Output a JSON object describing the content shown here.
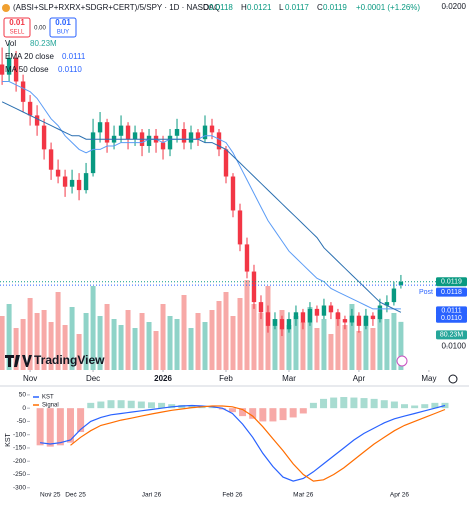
{
  "header": {
    "title": "(ABSI+SLP+RXRX+SDGR+CERT)/5/SPY · 1D · NASDAQ",
    "ohlc": [
      {
        "key": "O",
        "value": "0.0118"
      },
      {
        "key": "H",
        "value": "0.0121"
      },
      {
        "key": "L",
        "value": "0.0117"
      },
      {
        "key": "C",
        "value": "0.0119"
      }
    ],
    "change": "+0.0001 (+1.26%)"
  },
  "trade": {
    "sell_price": "0.01",
    "sell": "SELL",
    "spread": "0.00",
    "buy_price": "0.01",
    "buy": "BUY"
  },
  "chart_data": [
    {
      "type": "candlestick",
      "up_color": "#089981",
      "down_color": "#f23645",
      "watermark": "TradingView",
      "xlim": [
        -0.3,
        63.3
      ],
      "xticks": [
        {
          "value": 4,
          "label": "Nov"
        },
        {
          "value": 13,
          "label": "Dec"
        },
        {
          "value": 23,
          "label": "2026"
        },
        {
          "value": 32,
          "label": "Feb"
        },
        {
          "value": 41,
          "label": "Mar"
        },
        {
          "value": 51,
          "label": "Apr"
        },
        {
          "value": 61,
          "label": "May"
        }
      ],
      "ylim": [
        0.0093,
        0.0202
      ],
      "yticks": [
        {
          "value": 0.02,
          "label": "0.0200"
        },
        {
          "value": 0.01,
          "label": "0.0100"
        }
      ],
      "candles": [
        [
          0.0183,
          0.0188,
          0.0177,
          0.018
        ],
        [
          0.018,
          0.019,
          0.0178,
          0.0185
        ],
        [
          0.0185,
          0.0187,
          0.0175,
          0.0178
        ],
        [
          0.0178,
          0.018,
          0.0169,
          0.0172
        ],
        [
          0.0172,
          0.0174,
          0.0165,
          0.0168
        ],
        [
          0.0168,
          0.0171,
          0.0162,
          0.0165
        ],
        [
          0.0165,
          0.0167,
          0.0155,
          0.0158
        ],
        [
          0.0158,
          0.016,
          0.0149,
          0.0152
        ],
        [
          0.0152,
          0.0155,
          0.0148,
          0.015
        ],
        [
          0.015,
          0.0152,
          0.0144,
          0.0147
        ],
        [
          0.0147,
          0.0152,
          0.0145,
          0.0149
        ],
        [
          0.0149,
          0.0151,
          0.0143,
          0.0146
        ],
        [
          0.0146,
          0.0154,
          0.0145,
          0.0151
        ],
        [
          0.0151,
          0.0167,
          0.015,
          0.0163
        ],
        [
          0.0163,
          0.0169,
          0.016,
          0.0166
        ],
        [
          0.0166,
          0.0167,
          0.0157,
          0.016
        ],
        [
          0.016,
          0.0165,
          0.0158,
          0.0162
        ],
        [
          0.0162,
          0.0168,
          0.016,
          0.0165
        ],
        [
          0.0165,
          0.0166,
          0.0158,
          0.0161
        ],
        [
          0.0161,
          0.0165,
          0.0159,
          0.0163
        ],
        [
          0.0163,
          0.0164,
          0.0156,
          0.0159
        ],
        [
          0.0159,
          0.0164,
          0.0157,
          0.0162
        ],
        [
          0.0162,
          0.0164,
          0.0157,
          0.016
        ],
        [
          0.016,
          0.0162,
          0.0155,
          0.0158
        ],
        [
          0.0158,
          0.0164,
          0.0156,
          0.0162
        ],
        [
          0.0162,
          0.0167,
          0.016,
          0.0164
        ],
        [
          0.0164,
          0.0166,
          0.0158,
          0.016
        ],
        [
          0.016,
          0.0165,
          0.0158,
          0.0163
        ],
        [
          0.0163,
          0.0164,
          0.0159,
          0.0161
        ],
        [
          0.0161,
          0.0168,
          0.016,
          0.0165
        ],
        [
          0.0165,
          0.0167,
          0.0161,
          0.0163
        ],
        [
          0.0163,
          0.0164,
          0.0156,
          0.0158
        ],
        [
          0.0158,
          0.0159,
          0.0148,
          0.015
        ],
        [
          0.015,
          0.0151,
          0.0138,
          0.014
        ],
        [
          0.014,
          0.0142,
          0.0128,
          0.013
        ],
        [
          0.013,
          0.0132,
          0.012,
          0.0122
        ],
        [
          0.0122,
          0.0124,
          0.0111,
          0.0113
        ],
        [
          0.0113,
          0.0115,
          0.0108,
          0.011
        ],
        [
          0.011,
          0.0112,
          0.0104,
          0.0106
        ],
        [
          0.0106,
          0.011,
          0.0105,
          0.0108
        ],
        [
          0.0108,
          0.0109,
          0.0103,
          0.0105
        ],
        [
          0.0105,
          0.011,
          0.0104,
          0.0108
        ],
        [
          0.0108,
          0.0112,
          0.0106,
          0.011
        ],
        [
          0.011,
          0.0111,
          0.0105,
          0.0107
        ],
        [
          0.0107,
          0.0113,
          0.0106,
          0.0111
        ],
        [
          0.0111,
          0.0112,
          0.0107,
          0.0109
        ],
        [
          0.0109,
          0.0114,
          0.0108,
          0.0112
        ],
        [
          0.0112,
          0.0113,
          0.0108,
          0.011
        ],
        [
          0.011,
          0.0111,
          0.0106,
          0.0108
        ],
        [
          0.0108,
          0.0109,
          0.0105,
          0.0107
        ],
        [
          0.0107,
          0.0111,
          0.0106,
          0.0109
        ],
        [
          0.0109,
          0.011,
          0.0104,
          0.0106
        ],
        [
          0.0106,
          0.0111,
          0.0105,
          0.0109
        ],
        [
          0.0109,
          0.011,
          0.0106,
          0.0108
        ],
        [
          0.0108,
          0.0114,
          0.0107,
          0.0112
        ],
        [
          0.0112,
          0.0115,
          0.011,
          0.0113
        ],
        [
          0.0113,
          0.0119,
          0.0112,
          0.0117
        ],
        [
          0.0118,
          0.0121,
          0.0117,
          0.0119
        ]
      ],
      "overlays": [
        {
          "name": "EMA 20 close",
          "color": "#5b9cf6",
          "values": [
            0.0178,
            0.0178,
            0.0177,
            0.0176,
            0.0175,
            0.0173,
            0.017,
            0.0167,
            0.0165,
            0.0162,
            0.016,
            0.0158,
            0.0157,
            0.0158,
            0.0158,
            0.0159,
            0.0159,
            0.016,
            0.016,
            0.016,
            0.016,
            0.0161,
            0.0161,
            0.016,
            0.0161,
            0.0161,
            0.0161,
            0.0161,
            0.0161,
            0.0162,
            0.0162,
            0.0161,
            0.016,
            0.0157,
            0.0153,
            0.0149,
            0.0145,
            0.0141,
            0.0137,
            0.0134,
            0.0131,
            0.0128,
            0.0126,
            0.0124,
            0.0122,
            0.012,
            0.0119,
            0.0117,
            0.0116,
            0.0115,
            0.0114,
            0.0113,
            0.0112,
            0.0111,
            0.0111,
            0.0111,
            0.0111,
            0.0111
          ]
        },
        {
          "name": "MA 50 close",
          "color": "#2a6fb0",
          "value_label": "0.0110",
          "values": [
            0.0172,
            0.0171,
            0.017,
            0.0169,
            0.0168,
            0.0167,
            0.0166,
            0.0165,
            0.0164,
            0.0163,
            0.0162,
            0.0162,
            0.0161,
            0.0161,
            0.0161,
            0.0161,
            0.0161,
            0.0161,
            0.0161,
            0.0161,
            0.0161,
            0.0161,
            0.0161,
            0.0161,
            0.0161,
            0.0161,
            0.0161,
            0.0161,
            0.0161,
            0.016,
            0.016,
            0.0159,
            0.0158,
            0.0156,
            0.0154,
            0.0152,
            0.015,
            0.0148,
            0.0146,
            0.0144,
            0.0142,
            0.014,
            0.0138,
            0.0136,
            0.0134,
            0.0132,
            0.0129,
            0.0127,
            0.0125,
            0.0123,
            0.0121,
            0.0119,
            0.0117,
            0.0115,
            0.0113,
            0.0112,
            0.0111,
            0.011
          ]
        }
      ],
      "post": {
        "label": "Post",
        "value": 0.0118,
        "color": "#2962ff"
      },
      "volume": {
        "name": "Vol",
        "value_label": "80.23M",
        "up_color": "#8fd3c8",
        "down_color": "#f7a9a7",
        "badge_color": "#26a69a",
        "values": [
          90,
          110,
          70,
          85,
          120,
          95,
          100,
          80,
          130,
          75,
          105,
          60,
          95,
          140,
          90,
          110,
          85,
          75,
          100,
          70,
          95,
          80,
          65,
          110,
          90,
          85,
          125,
          70,
          95,
          80,
          100,
          115,
          130,
          90,
          120,
          150,
          110,
          95,
          140,
          85,
          100,
          75,
          90,
          80,
          105,
          70,
          85,
          60,
          95,
          75,
          110,
          65,
          90,
          70,
          100,
          85,
          95,
          80.23
        ]
      }
    },
    {
      "type": "line",
      "y_axis_label": "KST",
      "xlim": [
        -1,
        40
      ],
      "xticks": [
        {
          "value": 1,
          "label": "Nov 25"
        },
        {
          "value": 3.5,
          "label": "Dec 25"
        },
        {
          "value": 11,
          "label": "Jan 26"
        },
        {
          "value": 19,
          "label": "Feb 26"
        },
        {
          "value": 26,
          "label": "Mar 26"
        },
        {
          "value": 35.5,
          "label": "Apr 26"
        }
      ],
      "ylim": [
        -316,
        76
      ],
      "yticks": [
        50,
        0,
        -50,
        -100,
        -150,
        -200,
        -250,
        -300
      ],
      "series": [
        {
          "name": "KST",
          "color": "#2962ff",
          "values": [
            -130,
            -135,
            -130,
            -120,
            -80,
            -50,
            -35,
            -25,
            -20,
            -15,
            -10,
            -5,
            0,
            5,
            8,
            10,
            8,
            5,
            0,
            -20,
            -60,
            -110,
            -170,
            -220,
            -260,
            -275,
            -265,
            -240,
            -210,
            -180,
            -150,
            -120,
            -95,
            -75,
            -55,
            -40,
            -30,
            -20,
            -10,
            0,
            10
          ]
        },
        {
          "name": "Signal",
          "color": "#ff6d00",
          "values": [
            null,
            null,
            null,
            -140,
            -110,
            -85,
            -65,
            -55,
            -45,
            -38,
            -30,
            -22,
            -15,
            -8,
            -3,
            2,
            5,
            8,
            8,
            5,
            -5,
            -30,
            -70,
            -115,
            -160,
            -210,
            -250,
            -275,
            -270,
            -250,
            -225,
            -195,
            -165,
            -135,
            -110,
            -85,
            -65,
            -50,
            -35,
            -20,
            -5
          ]
        }
      ],
      "histogram": {
        "up_color": "#a8dcd1",
        "down_color": "#f7a9a7",
        "values": [
          -140,
          -145,
          -140,
          -130,
          -90,
          20,
          25,
          30,
          30,
          28,
          25,
          22,
          20,
          15,
          12,
          8,
          5,
          3,
          -5,
          -15,
          -30,
          -40,
          -50,
          -50,
          -45,
          -35,
          -20,
          20,
          35,
          40,
          42,
          40,
          38,
          35,
          30,
          25,
          15,
          10,
          15,
          20,
          20
        ]
      }
    }
  ]
}
